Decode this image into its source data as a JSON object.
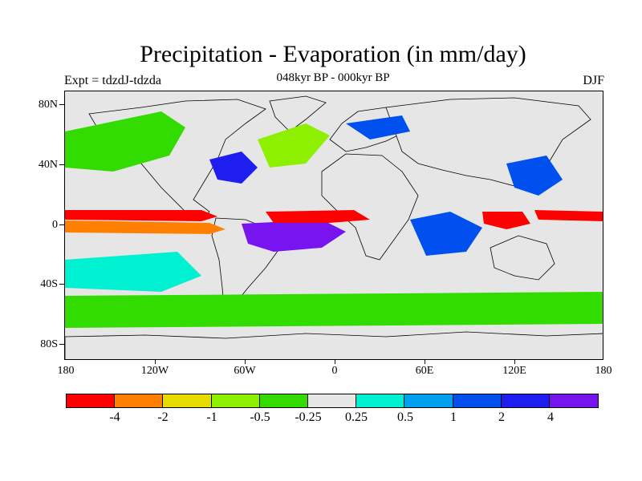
{
  "title": "Precipitation - Evaporation (in mm/day)",
  "subtitle": "048kyr BP - 000kyr BP",
  "expt_label": "Expt = tdzdJ-tdzda",
  "season": "DJF",
  "map": {
    "background_color": "#e6e6e6",
    "lat_labels": [
      "80N",
      "40N",
      "0",
      "40S",
      "80S"
    ],
    "lon_labels": [
      "180",
      "120W",
      "60W",
      "0",
      "60E",
      "120E",
      "180"
    ]
  },
  "colorbar": {
    "colors": [
      "#ff0000",
      "#ff8000",
      "#e6dc00",
      "#8cf000",
      "#32dc00",
      "#e6e6e6",
      "#00f0d2",
      "#00a0f0",
      "#0050f0",
      "#1e1ef0",
      "#7814f0"
    ],
    "labels": [
      "-4",
      "-2",
      "-1",
      "-0.5",
      "-0.25",
      "0.25",
      "0.5",
      "1",
      "2",
      "4"
    ]
  }
}
